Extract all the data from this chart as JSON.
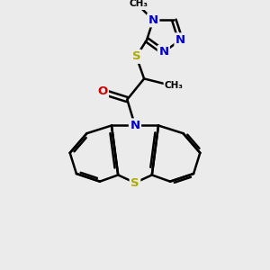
{
  "bg_color": "#ebebeb",
  "atom_colors": {
    "C": "#000000",
    "N": "#0000cc",
    "O": "#cc0000",
    "S": "#aaaa00"
  },
  "bond_color": "#000000",
  "bond_width": 1.8,
  "figsize": [
    3.0,
    3.0
  ],
  "dpi": 100,
  "xlim": [
    0,
    10
  ],
  "ylim": [
    0,
    10
  ]
}
